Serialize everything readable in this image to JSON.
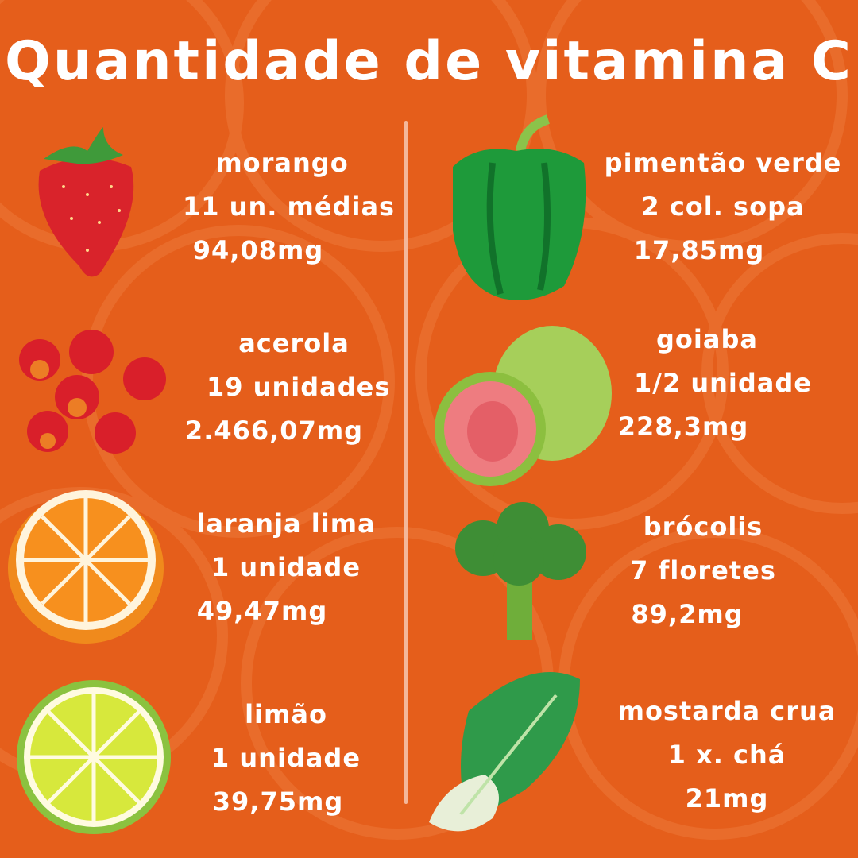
{
  "title": "Quantidade de vitamina C",
  "colors": {
    "background": "#E55E1B",
    "text": "#FFFFFF"
  },
  "left": [
    {
      "name": "morango",
      "portion": "11 un. médias",
      "amount": "94,08mg",
      "icon": "strawberry-icon"
    },
    {
      "name": "acerola",
      "portion": "19 unidades",
      "amount": "2.466,07mg",
      "icon": "acerola-icon"
    },
    {
      "name": "laranja lima",
      "portion": "1 unidade",
      "amount": "49,47mg",
      "icon": "orange-icon"
    },
    {
      "name": "limão",
      "portion": "1 unidade",
      "amount": "39,75mg",
      "icon": "lime-icon"
    }
  ],
  "right": [
    {
      "name": "pimentão verde",
      "portion": "2 col. sopa",
      "amount": "17,85mg",
      "icon": "green-pepper-icon"
    },
    {
      "name": "goiaba",
      "portion": "1/2 unidade",
      "amount": "228,3mg",
      "icon": "guava-icon"
    },
    {
      "name": "brócolis",
      "portion": "7 floretes",
      "amount": "89,2mg",
      "icon": "broccoli-icon"
    },
    {
      "name": "mostarda crua",
      "portion": "1 x. chá",
      "amount": "21mg",
      "icon": "mustard-greens-icon"
    }
  ]
}
